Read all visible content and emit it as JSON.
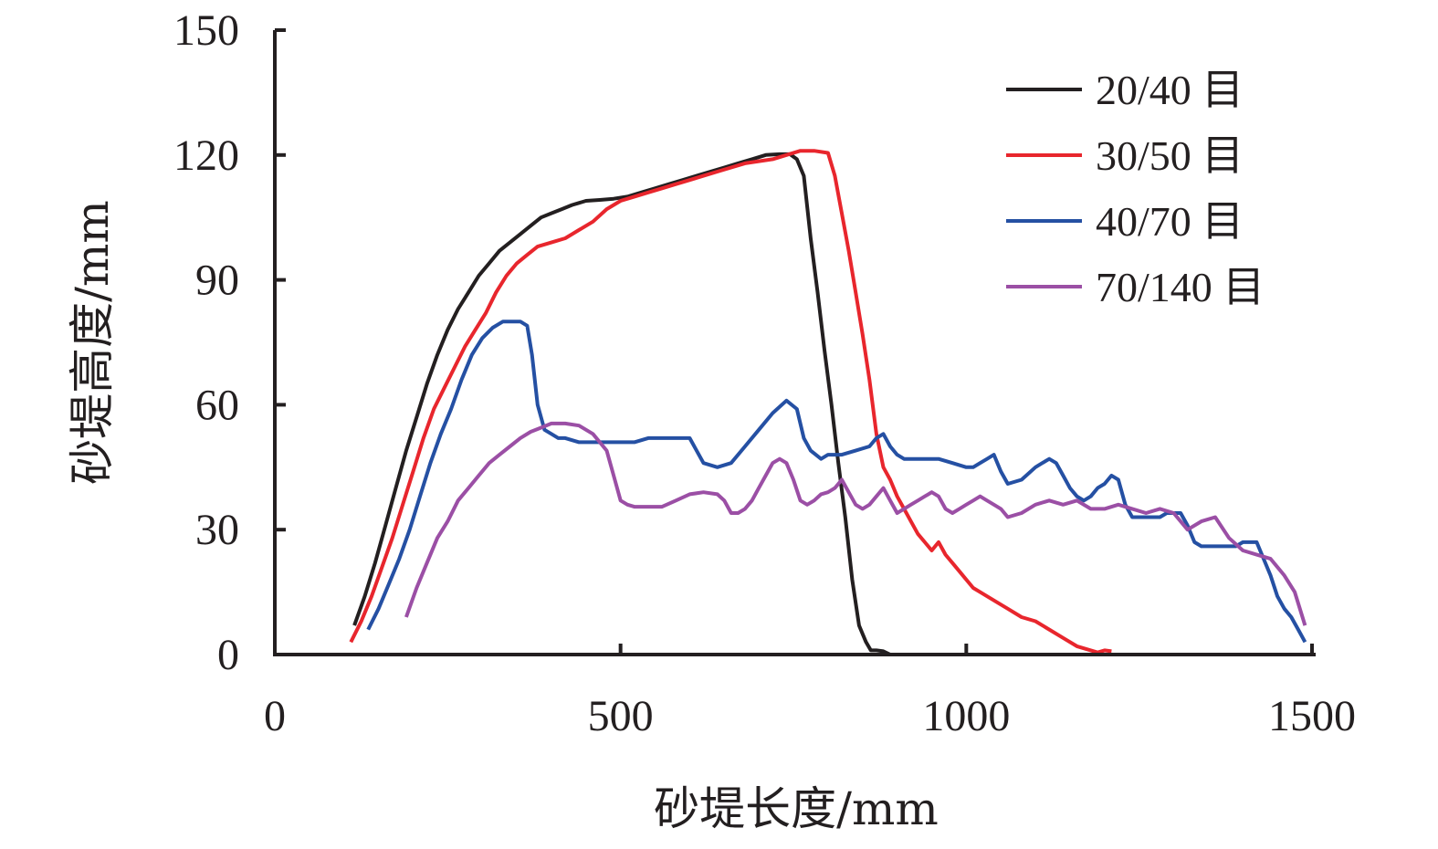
{
  "chart_data": {
    "type": "line",
    "title": "",
    "xlabel": "砂堤长度/mm",
    "ylabel": "砂堤高度/mm",
    "xlim": [
      0,
      1500
    ],
    "ylim": [
      0,
      150
    ],
    "xticks": [
      "0",
      "500",
      "1000",
      "1500"
    ],
    "yticks": [
      "0",
      "30",
      "60",
      "90",
      "120",
      "150"
    ],
    "grid": false,
    "legend_position": "top-right",
    "series": [
      {
        "name": "20/40 目",
        "color": "#231f20",
        "x": [
          115,
          130,
          145,
          160,
          175,
          190,
          205,
          220,
          235,
          250,
          265,
          280,
          295,
          310,
          325,
          340,
          355,
          370,
          385,
          400,
          415,
          430,
          450,
          470,
          490,
          510,
          530,
          550,
          570,
          590,
          610,
          630,
          650,
          670,
          690,
          710,
          730,
          745,
          755,
          765,
          775,
          785,
          795,
          805,
          815,
          825,
          835,
          845,
          855,
          862,
          870,
          880,
          890,
          900,
          915,
          930,
          1000,
          1100,
          1200,
          1300,
          1400,
          1490
        ],
        "y": [
          7,
          14,
          22,
          31,
          40,
          49,
          57,
          65,
          72,
          78,
          83,
          87,
          91,
          94,
          97,
          99,
          101,
          103,
          105,
          106,
          107,
          108,
          109,
          109.2,
          109.5,
          110,
          111,
          112,
          113,
          114,
          115,
          116,
          117,
          118,
          119,
          120,
          120.2,
          120.2,
          119,
          115,
          100,
          87,
          73,
          60,
          46,
          33,
          18,
          7,
          3,
          1,
          1,
          0.8,
          0,
          0,
          0,
          0,
          0,
          0,
          0,
          0,
          0,
          0
        ]
      },
      {
        "name": "30/50 目",
        "color": "#e8262d",
        "x": [
          110,
          125,
          140,
          155,
          170,
          185,
          200,
          215,
          230,
          245,
          260,
          275,
          290,
          305,
          320,
          335,
          350,
          365,
          380,
          400,
          420,
          440,
          460,
          480,
          500,
          520,
          540,
          560,
          580,
          600,
          620,
          640,
          660,
          680,
          700,
          720,
          740,
          760,
          780,
          800,
          810,
          820,
          830,
          840,
          850,
          860,
          870,
          880,
          890,
          900,
          910,
          920,
          930,
          940,
          950,
          960,
          970,
          980,
          990,
          1000,
          1010,
          1020,
          1040,
          1060,
          1080,
          1100,
          1120,
          1140,
          1160,
          1180,
          1190,
          1200,
          1210
        ],
        "y": [
          3,
          8,
          14,
          21,
          28,
          36,
          44,
          52,
          59,
          64,
          69,
          74,
          78,
          82,
          87,
          91,
          94,
          96,
          98,
          99,
          100,
          102,
          104,
          107,
          109,
          110,
          111,
          112,
          113,
          114,
          115,
          116,
          117,
          118,
          118.5,
          119,
          120,
          121,
          121,
          120.5,
          115,
          106,
          97,
          87,
          77,
          66,
          53,
          45,
          42,
          38,
          35,
          32,
          29,
          27,
          25,
          27,
          24,
          22,
          20,
          18,
          16,
          15,
          13,
          11,
          9,
          8,
          6,
          4,
          2,
          1,
          0.5,
          1,
          0.8
        ]
      },
      {
        "name": "40/70 目",
        "color": "#2550a3",
        "x": [
          135,
          150,
          165,
          180,
          195,
          210,
          225,
          240,
          255,
          270,
          285,
          300,
          315,
          330,
          345,
          355,
          365,
          372,
          380,
          390,
          400,
          410,
          420,
          440,
          460,
          480,
          500,
          520,
          540,
          560,
          580,
          600,
          620,
          640,
          660,
          680,
          700,
          720,
          740,
          755,
          765,
          775,
          790,
          800,
          820,
          840,
          860,
          870,
          880,
          890,
          900,
          910,
          920,
          940,
          960,
          980,
          1000,
          1010,
          1020,
          1030,
          1040,
          1050,
          1060,
          1080,
          1100,
          1110,
          1120,
          1130,
          1140,
          1150,
          1160,
          1170,
          1180,
          1190,
          1200,
          1210,
          1220,
          1230,
          1240,
          1250,
          1260,
          1270,
          1280,
          1290,
          1300,
          1310,
          1320,
          1330,
          1340,
          1350,
          1360,
          1370,
          1380,
          1390,
          1400,
          1410,
          1420,
          1430,
          1440,
          1450,
          1460,
          1470,
          1480,
          1490
        ],
        "y": [
          6,
          11,
          17,
          23,
          30,
          38,
          46,
          53,
          59,
          66,
          72,
          76,
          78.5,
          80,
          80,
          80,
          79,
          72,
          60,
          54,
          53,
          52,
          52,
          51,
          51,
          51,
          51,
          51,
          52,
          52,
          52,
          52,
          46,
          45,
          46,
          50,
          54,
          58,
          61,
          59,
          52,
          49,
          47,
          48,
          48,
          49,
          50,
          52,
          53,
          50,
          48,
          47,
          47,
          47,
          47,
          46,
          45,
          45,
          46,
          47,
          48,
          44,
          41,
          42,
          45,
          46,
          47,
          46,
          43,
          40,
          38,
          37,
          38,
          40,
          41,
          43,
          42,
          36,
          33,
          33,
          33,
          33,
          33,
          34,
          34,
          34,
          31,
          27,
          26,
          26,
          26,
          26,
          26,
          26,
          27,
          27,
          27,
          23,
          19,
          14,
          11,
          9,
          6,
          3
        ]
      },
      {
        "name": "70/140 目",
        "color": "#9b4fa5",
        "x": [
          190,
          205,
          220,
          235,
          250,
          265,
          280,
          295,
          310,
          325,
          340,
          355,
          370,
          385,
          400,
          410,
          420,
          440,
          460,
          470,
          480,
          490,
          500,
          510,
          520,
          540,
          560,
          580,
          600,
          620,
          640,
          650,
          660,
          670,
          680,
          690,
          700,
          710,
          720,
          730,
          740,
          750,
          760,
          770,
          780,
          790,
          800,
          810,
          820,
          830,
          840,
          850,
          860,
          870,
          880,
          890,
          900,
          910,
          920,
          930,
          940,
          950,
          960,
          970,
          980,
          990,
          1000,
          1010,
          1020,
          1030,
          1040,
          1050,
          1060,
          1080,
          1100,
          1120,
          1140,
          1160,
          1180,
          1200,
          1220,
          1240,
          1260,
          1280,
          1300,
          1320,
          1340,
          1360,
          1380,
          1400,
          1420,
          1440,
          1460,
          1475,
          1490
        ],
        "y": [
          9,
          16,
          22,
          28,
          32,
          37,
          40,
          43,
          46,
          48,
          50,
          52,
          53.5,
          54.5,
          55.5,
          55.5,
          55.5,
          55,
          53,
          51,
          49,
          43,
          37,
          36,
          35.5,
          35.5,
          35.5,
          37,
          38.5,
          39,
          38.5,
          37,
          34,
          34,
          35,
          37,
          40,
          43,
          46,
          47,
          46,
          42,
          37,
          36,
          37,
          38.5,
          39,
          40,
          42,
          39,
          36,
          35,
          36,
          38,
          40,
          37,
          34,
          35,
          36,
          37,
          38,
          39,
          38,
          35,
          34,
          35,
          36,
          37,
          38,
          37,
          36,
          35,
          33,
          34,
          36,
          37,
          36,
          37,
          35,
          35,
          36,
          35,
          34,
          35,
          34,
          30,
          32,
          33,
          28,
          25,
          24,
          23,
          19,
          15,
          7
        ]
      }
    ]
  }
}
